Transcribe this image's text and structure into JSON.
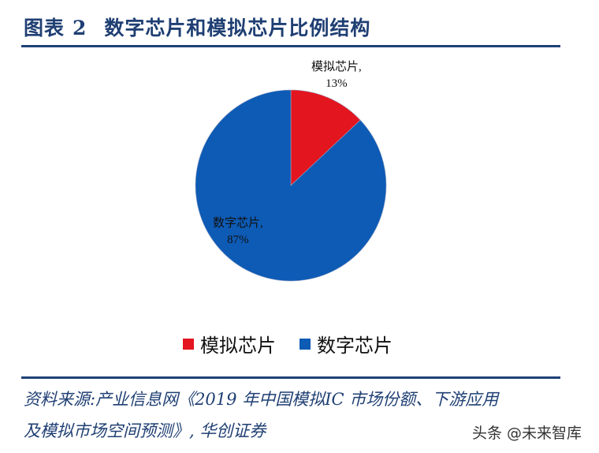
{
  "header": {
    "prefix": "图表",
    "number": "2",
    "title": "数字芯片和模拟芯片比例结构"
  },
  "colors": {
    "analog": "#e3151f",
    "digital": "#0d5bb5",
    "accent": "#1f3f73"
  },
  "labels": {
    "analog_name": "模拟芯片,",
    "analog_pct": "13%",
    "digital_name": "数字芯片,",
    "digital_pct": "87%"
  },
  "legend": [
    {
      "label": "模拟芯片",
      "color": "#e3151f"
    },
    {
      "label": "数字芯片",
      "color": "#0d5bb5"
    }
  ],
  "source": {
    "line1": "资料来源:产业信息网《2019 年中国模拟IC 市场份额、下游应用",
    "line2": "及模拟市场空间预测》, 华创证券"
  },
  "watermark": "头条 @未来智库",
  "chart_data": {
    "type": "pie",
    "title": "数字芯片和模拟芯片比例结构",
    "categories": [
      "模拟芯片",
      "数字芯片"
    ],
    "values": [
      13,
      87
    ],
    "unit": "%",
    "colors": [
      "#e3151f",
      "#0d5bb5"
    ],
    "legend_position": "bottom",
    "start_angle": "12 o'clock, clockwise"
  }
}
